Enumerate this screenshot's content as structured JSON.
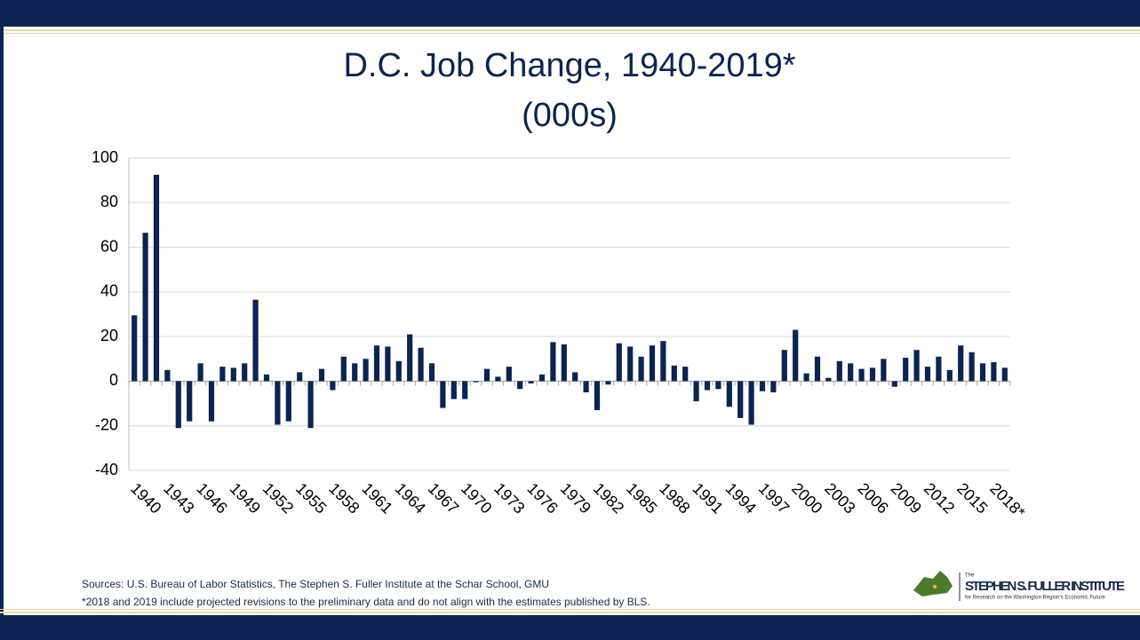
{
  "chart_data": {
    "type": "bar",
    "title": "D.C. Job Change, 1940-2019*",
    "subtitle": "(000s)",
    "categories": [
      "1940",
      null,
      null,
      "1943",
      null,
      null,
      "1946",
      null,
      null,
      "1949",
      null,
      null,
      "1952",
      null,
      null,
      "1955",
      null,
      null,
      "1958",
      null,
      null,
      "1961",
      null,
      null,
      "1964",
      null,
      null,
      "1967",
      null,
      null,
      "1970",
      null,
      null,
      "1973",
      null,
      null,
      "1976",
      null,
      null,
      "1979",
      null,
      null,
      "1982",
      null,
      null,
      "1985",
      null,
      null,
      "1988",
      null,
      null,
      "1991",
      null,
      null,
      "1994",
      null,
      null,
      "1997",
      null,
      null,
      "2000",
      null,
      null,
      "2003",
      null,
      null,
      "2006",
      null,
      null,
      "2009",
      null,
      null,
      "2012",
      null,
      null,
      "2015",
      null,
      null,
      "2018*",
      null
    ],
    "values": [
      29.5,
      66.5,
      92.5,
      5,
      -21,
      -18,
      8,
      -18,
      6.5,
      6,
      8,
      36.5,
      3,
      -19.5,
      -18,
      4,
      -21,
      5.5,
      -4,
      11,
      8,
      10,
      16,
      15.5,
      9,
      21,
      15,
      8,
      -12,
      -8,
      -8,
      -0.5,
      5.5,
      2,
      6.5,
      -3.5,
      -1,
      3,
      17.5,
      16.5,
      4,
      -5,
      -13,
      -1.5,
      17,
      15.5,
      11,
      16,
      18,
      7,
      6.5,
      -9,
      -4,
      -3.5,
      -11.5,
      -16.5,
      -19.5,
      -4.5,
      -5,
      14,
      23,
      3.5,
      11,
      1.5,
      9,
      8,
      5.5,
      6,
      10,
      -2.5,
      10.5,
      14,
      6.5,
      11,
      5,
      16,
      13,
      8,
      8.5,
      6
    ],
    "color": "#0d2452",
    "ylim": [
      -40,
      100
    ],
    "yticks": [
      -40,
      -20,
      0,
      20,
      40,
      60,
      80,
      100
    ],
    "grid": true
  },
  "sources": "Sources: U.S. Bureau of Labor Statistics, The Stephen S. Fuller Institute at the Schar School, GMU",
  "note": "*2018 and 2019 include projected revisions to the preliminary data and do not align with the estimates published by BLS.",
  "logo": {
    "small": "The",
    "name": "STEPHEN S. FULLER INSTITUTE",
    "tagline": "for Research on the Washington Region's Economic Future"
  }
}
